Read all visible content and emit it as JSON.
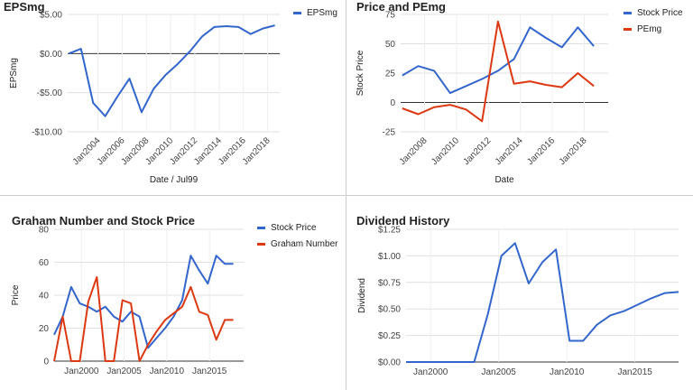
{
  "charts": [
    {
      "type": "line",
      "title": "EPSmg",
      "xlabel": "Date / Jul99",
      "ylabel": "EPSmg",
      "xlim": [
        2001.5,
        2019
      ],
      "ylim": [
        -10,
        5
      ],
      "yticks": [
        5,
        0,
        -5,
        -10
      ],
      "ytick_labels": [
        "$5.00",
        "$0.00",
        "-$5.00",
        "-$10.00"
      ],
      "xticks": [
        2004,
        2006,
        2008,
        2010,
        2012,
        2014,
        2016,
        2018
      ],
      "xtick_labels": [
        "Jan2004",
        "Jan2006",
        "Jan2008",
        "Jan2010",
        "Jan2012",
        "Jan2014",
        "Jan2016",
        "Jan2018"
      ],
      "zero_line": true,
      "series": [
        {
          "name": "EPSmg",
          "color": "#3366cc",
          "x": [
            2001.6,
            2002.6,
            2003.6,
            2004.6,
            2005.6,
            2006.6,
            2007.6,
            2008.6,
            2009.6,
            2010.6,
            2011.6,
            2012.6,
            2013.6,
            2014.6,
            2015.6,
            2016.6,
            2017.6,
            2018.6
          ],
          "y": [
            0.0,
            0.6,
            -6.3,
            -8.0,
            -5.5,
            -3.2,
            -7.5,
            -4.5,
            -2.7,
            -1.3,
            0.3,
            2.2,
            3.4,
            3.5,
            3.4,
            2.5,
            3.2,
            3.6
          ]
        }
      ]
    },
    {
      "type": "line",
      "title": "Price and PEmg",
      "xlabel": "Date",
      "ylabel": "Stock Price",
      "xlim": [
        2006.5,
        2019.5
      ],
      "ylim": [
        -25,
        75
      ],
      "yticks": [
        75,
        50,
        25,
        0,
        -25
      ],
      "ytick_labels": [
        "75",
        "50",
        "25",
        "0",
        "-25"
      ],
      "xticks": [
        2008,
        2010,
        2012,
        2014,
        2016,
        2018
      ],
      "xtick_labels": [
        "Jan2008",
        "Jan2010",
        "Jan2012",
        "Jan2014",
        "Jan2016",
        "Jan2018"
      ],
      "zero_line": true,
      "series": [
        {
          "name": "Stock Price",
          "color": "#3366cc",
          "x": [
            2006.6,
            2007.6,
            2008.6,
            2009.6,
            2010.6,
            2011.6,
            2012.6,
            2013.6,
            2014.6,
            2015.6,
            2016.6,
            2017.6,
            2018.6
          ],
          "y": [
            23,
            31,
            27,
            8,
            14,
            20,
            27,
            37,
            64,
            55,
            47,
            64,
            48
          ]
        },
        {
          "name": "PEmg",
          "color": "#dc3912",
          "x": [
            2006.6,
            2007.6,
            2008.6,
            2009.6,
            2010.6,
            2011.6,
            2012.6,
            2013.6,
            2014.6,
            2015.6,
            2016.6,
            2017.6,
            2018.6
          ],
          "y": [
            -5,
            -10,
            -4,
            -2,
            -6,
            -16,
            69,
            16,
            18,
            15,
            13,
            25,
            14
          ]
        }
      ]
    },
    {
      "type": "line",
      "title": "Graham Number and Stock Price",
      "xlabel": "Date",
      "ylabel": "Price",
      "xlim": [
        1996.8,
        2019
      ],
      "ylim": [
        0,
        80
      ],
      "yticks": [
        80,
        60,
        40,
        20,
        0
      ],
      "ytick_labels": [
        "80",
        "60",
        "40",
        "20",
        "0"
      ],
      "xticks": [
        2000,
        2005,
        2010,
        2015
      ],
      "xtick_labels": [
        "Jan2000",
        "Jan2005",
        "Jan2010",
        "Jan2015"
      ],
      "zero_line": false,
      "series": [
        {
          "name": "Stock Price",
          "color": "#3366cc",
          "x": [
            1996.8,
            1997.8,
            1998.8,
            1999.8,
            2000.8,
            2001.8,
            2002.8,
            2003.8,
            2004.8,
            2005.8,
            2006.8,
            2007.8,
            2008.8,
            2009.8,
            2010.8,
            2011.8,
            2012.8,
            2013.8,
            2014.8,
            2015.8,
            2016.8,
            2017.8
          ],
          "y": [
            16,
            27,
            45,
            35,
            33,
            30,
            33,
            27,
            24,
            30,
            27,
            8,
            14,
            20,
            27,
            37,
            64,
            55,
            47,
            64,
            59,
            59
          ]
        },
        {
          "name": "Graham Number",
          "color": "#dc3912",
          "x": [
            1996.8,
            1997.8,
            1998.8,
            1999.8,
            2000.8,
            2001.8,
            2002.8,
            2003.8,
            2004.8,
            2005.8,
            2006.8,
            2007.8,
            2008.8,
            2009.8,
            2010.8,
            2011.8,
            2012.8,
            2013.8,
            2014.8,
            2015.8,
            2016.8,
            2017.8
          ],
          "y": [
            0,
            27,
            0,
            0,
            36,
            51,
            0,
            0,
            37,
            35,
            0,
            10,
            18,
            25,
            29,
            33,
            45,
            30,
            28,
            13,
            25,
            25
          ]
        }
      ]
    },
    {
      "type": "line",
      "title": "Dividend History",
      "xlabel": "",
      "ylabel": "Dividend",
      "xlim": [
        1998.2,
        2018.2
      ],
      "ylim": [
        0,
        1.25
      ],
      "yticks": [
        1.25,
        1.0,
        0.75,
        0.5,
        0.25,
        0.0
      ],
      "ytick_labels": [
        "$1.25",
        "$1.00",
        "$0.75",
        "$0.50",
        "$0.25",
        "$0.00"
      ],
      "xticks": [
        2000,
        2005,
        2010,
        2015
      ],
      "xtick_labels": [
        "Jan2000",
        "Jan2005",
        "Jan2010",
        "Jan2015"
      ],
      "zero_line": false,
      "series": [
        {
          "name": "Dividend",
          "color": "#3366cc",
          "x": [
            1998.2,
            1999.2,
            2000.2,
            2001.2,
            2002.2,
            2003.2,
            2004.2,
            2005.2,
            2006.2,
            2007.2,
            2008.2,
            2009.2,
            2010.2,
            2011.2,
            2012.2,
            2013.2,
            2014.2,
            2015.2,
            2016.2,
            2017.2,
            2018.2
          ],
          "y": [
            0,
            0,
            0,
            0,
            0,
            0,
            0.45,
            1.0,
            1.12,
            0.74,
            0.94,
            1.06,
            0.2,
            0.2,
            0.35,
            0.44,
            0.48,
            0.54,
            0.6,
            0.65,
            0.66
          ]
        }
      ]
    }
  ]
}
